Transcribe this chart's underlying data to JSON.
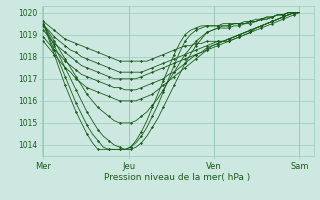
{
  "xlabel": "Pression niveau de la mer( hPa )",
  "bg_color": "#cce8e0",
  "grid_color": "#99ccbb",
  "line_color": "#1a5c1a",
  "marker_color": "#1a5c1a",
  "ylim": [
    1013.5,
    1020.3
  ],
  "yticks": [
    1014,
    1015,
    1016,
    1017,
    1018,
    1019,
    1020
  ],
  "day_positions": [
    0,
    48,
    96,
    144
  ],
  "day_labels": [
    "Mer",
    "Jeu",
    "Ven",
    "Sam"
  ],
  "series": [
    [
      1019.6,
      1019.4,
      1019.2,
      1019.0,
      1018.8,
      1018.7,
      1018.6,
      1018.5,
      1018.4,
      1018.3,
      1018.2,
      1018.1,
      1018.0,
      1017.9,
      1017.8,
      1017.8,
      1017.8,
      1017.8,
      1017.8,
      1017.8,
      1017.9,
      1018.0,
      1018.1,
      1018.2,
      1018.3,
      1018.4,
      1018.5,
      1018.5,
      1018.6,
      1018.6,
      1018.7,
      1018.7,
      1018.7,
      1018.7,
      1018.7,
      1018.8,
      1018.9,
      1019.0,
      1019.1,
      1019.2,
      1019.3,
      1019.4,
      1019.5,
      1019.6,
      1019.7,
      1019.8,
      1019.9,
      1020.0
    ],
    [
      1019.4,
      1019.2,
      1018.9,
      1018.7,
      1018.5,
      1018.3,
      1018.2,
      1018.0,
      1017.9,
      1017.8,
      1017.7,
      1017.6,
      1017.5,
      1017.4,
      1017.3,
      1017.3,
      1017.3,
      1017.3,
      1017.3,
      1017.4,
      1017.5,
      1017.6,
      1017.7,
      1017.8,
      1017.9,
      1018.0,
      1018.1,
      1018.2,
      1018.3,
      1018.4,
      1018.5,
      1018.6,
      1018.7,
      1018.7,
      1018.8,
      1018.9,
      1019.0,
      1019.1,
      1019.2,
      1019.3,
      1019.4,
      1019.5,
      1019.6,
      1019.7,
      1019.8,
      1019.9,
      1020.0,
      1020.0
    ],
    [
      1019.2,
      1018.9,
      1018.6,
      1018.4,
      1018.2,
      1018.0,
      1017.8,
      1017.6,
      1017.5,
      1017.4,
      1017.3,
      1017.2,
      1017.1,
      1017.0,
      1017.0,
      1017.0,
      1017.0,
      1017.0,
      1017.1,
      1017.2,
      1017.3,
      1017.4,
      1017.5,
      1017.6,
      1017.7,
      1017.8,
      1017.9,
      1018.0,
      1018.1,
      1018.2,
      1018.3,
      1018.5,
      1018.6,
      1018.7,
      1018.8,
      1018.9,
      1019.0,
      1019.1,
      1019.2,
      1019.3,
      1019.4,
      1019.5,
      1019.6,
      1019.7,
      1019.8,
      1019.9,
      1020.0,
      1020.0
    ],
    [
      1018.9,
      1018.6,
      1018.3,
      1018.1,
      1017.8,
      1017.6,
      1017.4,
      1017.2,
      1017.1,
      1017.0,
      1016.9,
      1016.8,
      1016.7,
      1016.6,
      1016.6,
      1016.5,
      1016.5,
      1016.5,
      1016.6,
      1016.7,
      1016.8,
      1016.9,
      1017.0,
      1017.2,
      1017.3,
      1017.5,
      1017.7,
      1017.9,
      1018.1,
      1018.2,
      1018.4,
      1018.5,
      1018.6,
      1018.7,
      1018.8,
      1018.9,
      1019.0,
      1019.1,
      1019.2,
      1019.3,
      1019.4,
      1019.5,
      1019.6,
      1019.7,
      1019.8,
      1019.9,
      1020.0,
      1020.0
    ],
    [
      1018.7,
      1018.4,
      1018.1,
      1017.8,
      1017.5,
      1017.3,
      1017.0,
      1016.8,
      1016.6,
      1016.5,
      1016.4,
      1016.3,
      1016.2,
      1016.1,
      1016.0,
      1016.0,
      1016.0,
      1016.0,
      1016.1,
      1016.2,
      1016.3,
      1016.5,
      1016.7,
      1016.9,
      1017.1,
      1017.3,
      1017.5,
      1017.7,
      1017.9,
      1018.1,
      1018.3,
      1018.4,
      1018.5,
      1018.6,
      1018.7,
      1018.8,
      1018.9,
      1019.0,
      1019.1,
      1019.3,
      1019.4,
      1019.5,
      1019.6,
      1019.7,
      1019.8,
      1019.9,
      1020.0,
      1020.0
    ],
    [
      1019.5,
      1019.1,
      1018.7,
      1018.3,
      1017.9,
      1017.5,
      1017.1,
      1016.7,
      1016.3,
      1016.0,
      1015.7,
      1015.5,
      1015.3,
      1015.1,
      1015.0,
      1015.0,
      1015.0,
      1015.1,
      1015.3,
      1015.5,
      1015.8,
      1016.1,
      1016.5,
      1016.9,
      1017.3,
      1017.7,
      1018.1,
      1018.4,
      1018.7,
      1018.9,
      1019.1,
      1019.2,
      1019.3,
      1019.4,
      1019.4,
      1019.5,
      1019.5,
      1019.6,
      1019.6,
      1019.7,
      1019.7,
      1019.8,
      1019.8,
      1019.9,
      1019.9,
      1020.0,
      1020.0,
      1020.0
    ],
    [
      1019.5,
      1019.0,
      1018.5,
      1018.0,
      1017.5,
      1017.0,
      1016.5,
      1016.0,
      1015.5,
      1015.1,
      1014.7,
      1014.4,
      1014.2,
      1014.0,
      1013.9,
      1013.8,
      1013.8,
      1013.9,
      1014.1,
      1014.4,
      1014.8,
      1015.2,
      1015.7,
      1016.2,
      1016.7,
      1017.2,
      1017.7,
      1018.1,
      1018.5,
      1018.8,
      1019.1,
      1019.2,
      1019.3,
      1019.3,
      1019.3,
      1019.4,
      1019.4,
      1019.5,
      1019.5,
      1019.6,
      1019.7,
      1019.7,
      1019.8,
      1019.9,
      1019.9,
      1020.0,
      1020.0,
      1020.0
    ],
    [
      1019.5,
      1018.9,
      1018.3,
      1017.7,
      1017.1,
      1016.5,
      1015.9,
      1015.4,
      1014.9,
      1014.5,
      1014.2,
      1013.9,
      1013.8,
      1013.8,
      1013.8,
      1013.8,
      1013.9,
      1014.1,
      1014.4,
      1014.8,
      1015.3,
      1015.8,
      1016.4,
      1017.0,
      1017.6,
      1018.2,
      1018.7,
      1019.0,
      1019.2,
      1019.3,
      1019.4,
      1019.4,
      1019.4,
      1019.4,
      1019.4,
      1019.5,
      1019.5,
      1019.5,
      1019.6,
      1019.6,
      1019.7,
      1019.7,
      1019.8,
      1019.9,
      1019.9,
      1020.0,
      1020.0,
      1020.0
    ],
    [
      1019.5,
      1018.8,
      1018.1,
      1017.4,
      1016.7,
      1016.1,
      1015.5,
      1015.0,
      1014.5,
      1014.1,
      1013.8,
      1013.8,
      1013.8,
      1013.8,
      1013.8,
      1013.8,
      1013.9,
      1014.2,
      1014.6,
      1015.1,
      1015.7,
      1016.3,
      1016.9,
      1017.5,
      1018.1,
      1018.6,
      1019.0,
      1019.2,
      1019.3,
      1019.4,
      1019.4,
      1019.4,
      1019.4,
      1019.5,
      1019.5,
      1019.5,
      1019.5,
      1019.5,
      1019.6,
      1019.6,
      1019.7,
      1019.8,
      1019.8,
      1019.9,
      1019.9,
      1020.0,
      1020.0,
      1020.0
    ]
  ]
}
